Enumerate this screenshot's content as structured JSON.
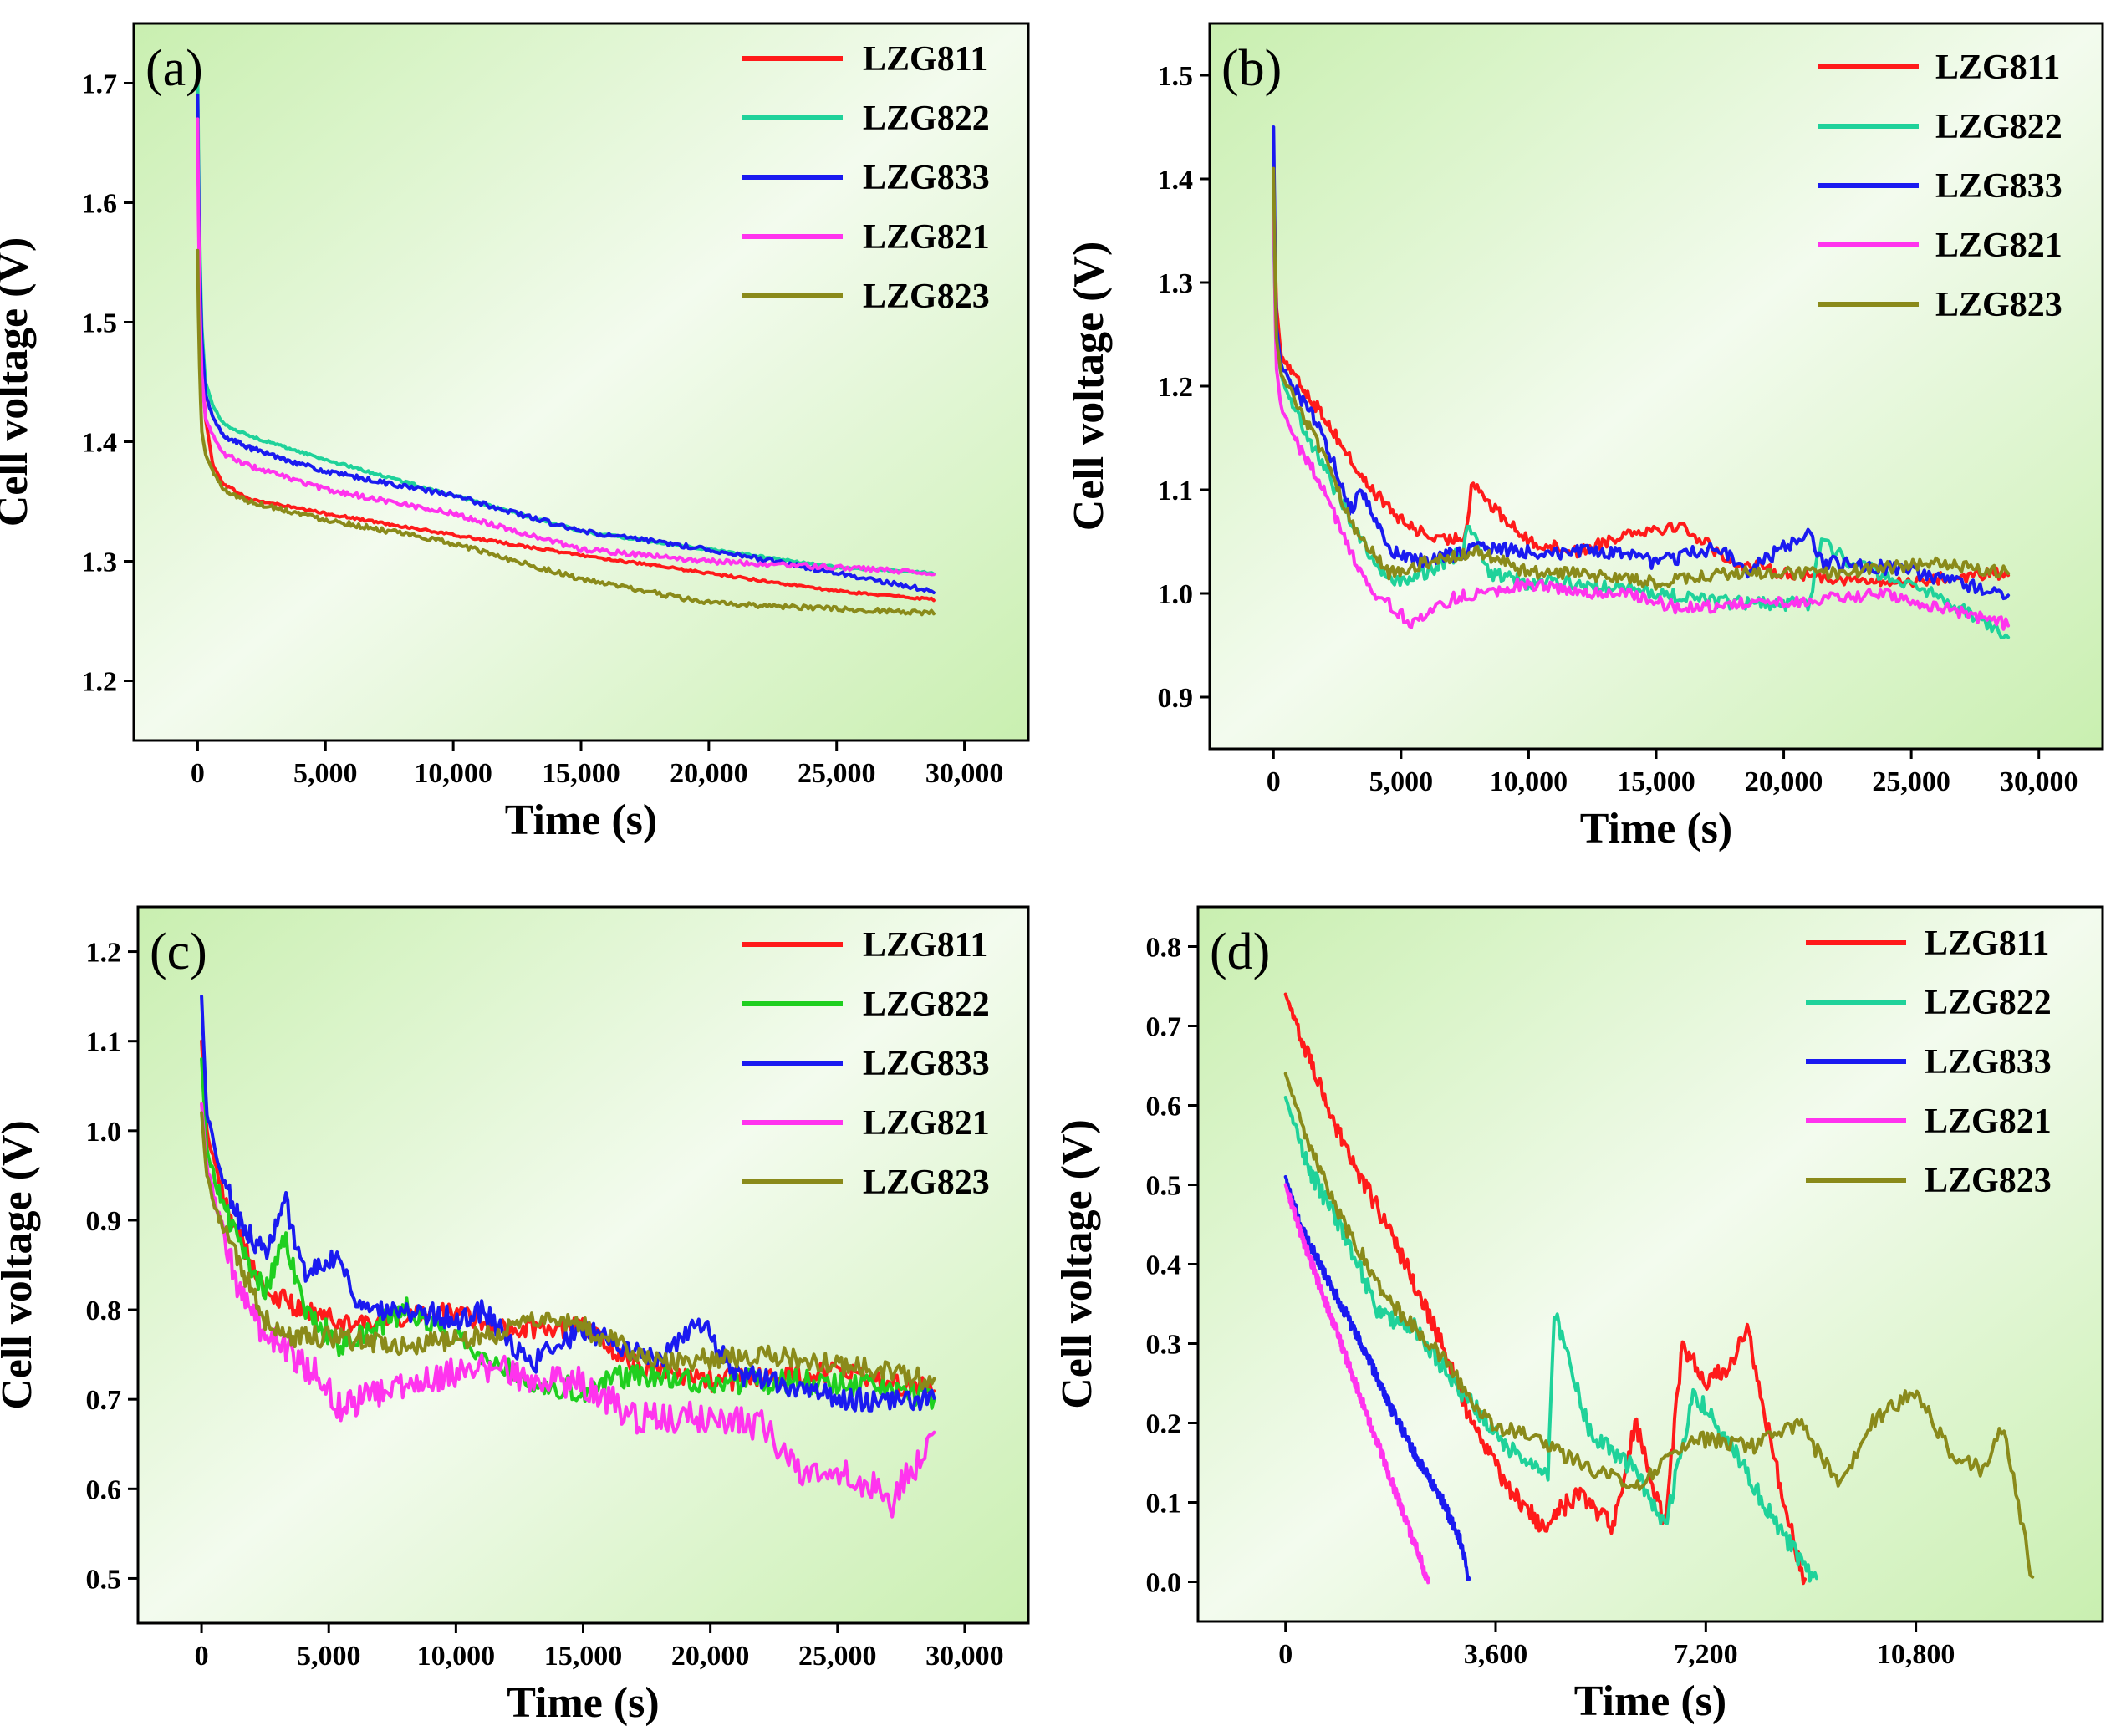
{
  "chart_data": [
    {
      "panel": "(a)",
      "type": "line",
      "xlabel": "Time (s)",
      "ylabel": "Cell voltage (V)",
      "xlim": [
        -2500,
        32500
      ],
      "ylim": [
        1.15,
        1.75
      ],
      "xticks": [
        0,
        5000,
        10000,
        15000,
        20000,
        25000,
        30000
      ],
      "xtick_labels": [
        "0",
        "5,000",
        "10,000",
        "15,000",
        "20,000",
        "25,000",
        "30,000"
      ],
      "yticks": [
        1.2,
        1.3,
        1.4,
        1.5,
        1.6,
        1.7
      ],
      "ytick_labels": [
        "1.2",
        "1.3",
        "1.4",
        "1.5",
        "1.6",
        "1.7"
      ],
      "legend_position": "top-right",
      "series": [
        {
          "name": "LZG811",
          "color": "#ff1a1a",
          "noise": 0.001,
          "x": [
            0,
            50,
            150,
            300,
            600,
            1000,
            2000,
            5000,
            10000,
            15000,
            20000,
            25000,
            28800
          ],
          "y": [
            1.69,
            1.58,
            1.47,
            1.42,
            1.38,
            1.365,
            1.352,
            1.34,
            1.322,
            1.305,
            1.29,
            1.275,
            1.268
          ]
        },
        {
          "name": "LZG822",
          "color": "#1fd29a",
          "noise": 0.001,
          "x": [
            0,
            50,
            150,
            300,
            600,
            1000,
            2000,
            5000,
            10000,
            15000,
            20000,
            25000,
            28800
          ],
          "y": [
            1.71,
            1.6,
            1.5,
            1.45,
            1.43,
            1.415,
            1.405,
            1.385,
            1.355,
            1.325,
            1.31,
            1.295,
            1.29
          ]
        },
        {
          "name": "LZG833",
          "color": "#1a1af0",
          "noise": 0.002,
          "x": [
            0,
            50,
            150,
            300,
            600,
            1000,
            2000,
            5000,
            10000,
            15000,
            20000,
            25000,
            28800
          ],
          "y": [
            1.69,
            1.58,
            1.49,
            1.44,
            1.42,
            1.405,
            1.395,
            1.375,
            1.355,
            1.325,
            1.31,
            1.29,
            1.275
          ]
        },
        {
          "name": "LZG821",
          "color": "#ff33ee",
          "noise": 0.002,
          "x": [
            0,
            50,
            150,
            300,
            600,
            1000,
            2000,
            5000,
            10000,
            15000,
            20000,
            25000,
            28800
          ],
          "y": [
            1.67,
            1.55,
            1.46,
            1.42,
            1.405,
            1.39,
            1.38,
            1.36,
            1.34,
            1.31,
            1.3,
            1.295,
            1.29
          ]
        },
        {
          "name": "LZG823",
          "color": "#8a8a1a",
          "noise": 0.002,
          "x": [
            0,
            50,
            150,
            300,
            600,
            1000,
            2000,
            5000,
            10000,
            15000,
            20000,
            25000,
            28800
          ],
          "y": [
            1.56,
            1.48,
            1.41,
            1.39,
            1.375,
            1.36,
            1.35,
            1.335,
            1.315,
            1.285,
            1.265,
            1.26,
            1.257
          ]
        }
      ]
    },
    {
      "panel": "(b)",
      "type": "line",
      "xlabel": "Time (s)",
      "ylabel": "Cell voltage (V)",
      "xlim": [
        -2500,
        32500
      ],
      "ylim": [
        0.85,
        1.55
      ],
      "xticks": [
        0,
        5000,
        10000,
        15000,
        20000,
        25000,
        30000
      ],
      "xtick_labels": [
        "0",
        "5,000",
        "10,000",
        "15,000",
        "20,000",
        "25,000",
        "30,000"
      ],
      "yticks": [
        0.9,
        1.0,
        1.1,
        1.2,
        1.3,
        1.4,
        1.5
      ],
      "ytick_labels": [
        "0.9",
        "1.0",
        "1.1",
        "1.2",
        "1.3",
        "1.4",
        "1.5"
      ],
      "legend_position": "top-right",
      "series": [
        {
          "name": "LZG811",
          "color": "#ff1a1a",
          "noise": 0.006,
          "x": [
            0,
            100,
            300,
            800,
            2000,
            3500,
            5000,
            6500,
            7500,
            7800,
            8500,
            10000,
            12000,
            14000,
            16000,
            18000,
            20000,
            24000,
            28800
          ],
          "y": [
            1.42,
            1.28,
            1.23,
            1.21,
            1.17,
            1.11,
            1.07,
            1.05,
            1.055,
            1.11,
            1.085,
            1.05,
            1.04,
            1.06,
            1.065,
            1.03,
            1.02,
            1.01,
            1.02
          ]
        },
        {
          "name": "LZG822",
          "color": "#1fd29a",
          "noise": 0.007,
          "x": [
            0,
            100,
            300,
            800,
            2000,
            3500,
            4500,
            6000,
            7400,
            7600,
            8500,
            10000,
            12000,
            15000,
            18000,
            21000,
            21500,
            22500,
            25000,
            28800
          ],
          "y": [
            1.35,
            1.25,
            1.21,
            1.18,
            1.12,
            1.05,
            1.01,
            1.02,
            1.04,
            1.07,
            1.02,
            1.01,
            1.01,
            1.0,
            0.99,
            0.99,
            1.055,
            1.03,
            1.01,
            0.96
          ]
        },
        {
          "name": "LZG833",
          "color": "#1a1af0",
          "noise": 0.007,
          "x": [
            0,
            100,
            300,
            800,
            2000,
            3000,
            3500,
            4500,
            6000,
            8000,
            10000,
            13000,
            15000,
            17500,
            18500,
            21000,
            21500,
            24000,
            28800
          ],
          "y": [
            1.45,
            1.26,
            1.22,
            1.2,
            1.15,
            1.08,
            1.1,
            1.04,
            1.03,
            1.045,
            1.04,
            1.04,
            1.03,
            1.045,
            1.02,
            1.06,
            1.03,
            1.025,
            1.0
          ]
        },
        {
          "name": "LZG821",
          "color": "#ff33ee",
          "noise": 0.006,
          "x": [
            0,
            100,
            300,
            800,
            2000,
            3000,
            4000,
            5500,
            7000,
            8000,
            10000,
            12000,
            14000,
            16000,
            18000,
            20000,
            24000,
            28800
          ],
          "y": [
            1.38,
            1.22,
            1.18,
            1.15,
            1.1,
            1.04,
            1.0,
            0.97,
            0.995,
            1.0,
            1.01,
            1.0,
            1.0,
            0.985,
            0.99,
            0.99,
            1.0,
            0.97
          ]
        },
        {
          "name": "LZG823",
          "color": "#8a8a1a",
          "noise": 0.006,
          "x": [
            0,
            100,
            300,
            800,
            2000,
            3000,
            4500,
            6000,
            8000,
            10000,
            12000,
            15000,
            18000,
            22000,
            26000,
            28800
          ],
          "y": [
            1.41,
            1.25,
            1.21,
            1.19,
            1.13,
            1.07,
            1.02,
            1.03,
            1.04,
            1.02,
            1.02,
            1.01,
            1.02,
            1.02,
            1.03,
            1.02
          ]
        }
      ]
    },
    {
      "panel": "(c)",
      "type": "line",
      "xlabel": "Time (s)",
      "ylabel": "Cell voltage (V)",
      "xlim": [
        -2500,
        32500
      ],
      "ylim": [
        0.45,
        1.25
      ],
      "xticks": [
        0,
        5000,
        10000,
        15000,
        20000,
        25000,
        30000
      ],
      "xtick_labels": [
        "0",
        "5,000",
        "10,000",
        "15,000",
        "20,000",
        "25,000",
        "30,000"
      ],
      "yticks": [
        0.5,
        0.6,
        0.7,
        0.8,
        0.9,
        1.0,
        1.1,
        1.2
      ],
      "ytick_labels": [
        "0.5",
        "0.6",
        "0.7",
        "0.8",
        "0.9",
        "1.0",
        "1.1",
        "1.2"
      ],
      "legend_position": "top-right",
      "series": [
        {
          "name": "LZG811",
          "color": "#ff1a1a",
          "noise": 0.012,
          "x": [
            0,
            200,
            700,
            1500,
            2500,
            4000,
            6000,
            9000,
            12000,
            15000,
            17000,
            20000,
            25000,
            28800
          ],
          "y": [
            1.1,
            1.0,
            0.94,
            0.88,
            0.82,
            0.8,
            0.78,
            0.8,
            0.78,
            0.78,
            0.74,
            0.72,
            0.73,
            0.71
          ]
        },
        {
          "name": "LZG822",
          "color": "#1fcf1f",
          "noise": 0.014,
          "x": [
            0,
            200,
            700,
            1500,
            2500,
            3300,
            4000,
            5500,
            8000,
            10000,
            13000,
            15000,
            17000,
            20000,
            25000,
            28800
          ],
          "y": [
            1.08,
            0.98,
            0.93,
            0.87,
            0.82,
            0.88,
            0.8,
            0.76,
            0.8,
            0.77,
            0.72,
            0.71,
            0.73,
            0.72,
            0.72,
            0.7
          ]
        },
        {
          "name": "LZG833",
          "color": "#1a1af0",
          "noise": 0.013,
          "x": [
            0,
            200,
            700,
            1500,
            2500,
            3300,
            4000,
            5500,
            6000,
            8000,
            10000,
            11000,
            13000,
            15000,
            18000,
            19500,
            21000,
            25000,
            28800
          ],
          "y": [
            1.15,
            1.02,
            0.96,
            0.9,
            0.86,
            0.92,
            0.84,
            0.86,
            0.8,
            0.8,
            0.79,
            0.8,
            0.74,
            0.78,
            0.74,
            0.79,
            0.73,
            0.7,
            0.7
          ]
        },
        {
          "name": "LZG821",
          "color": "#ff33ee",
          "noise": 0.018,
          "x": [
            0,
            200,
            700,
            1500,
            2500,
            3500,
            4500,
            5500,
            7000,
            9000,
            11000,
            13000,
            15000,
            17000,
            20000,
            22000,
            23500,
            25000,
            26500,
            27000,
            28800
          ],
          "y": [
            1.03,
            0.96,
            0.9,
            0.82,
            0.77,
            0.75,
            0.73,
            0.69,
            0.71,
            0.72,
            0.74,
            0.72,
            0.72,
            0.68,
            0.68,
            0.67,
            0.62,
            0.62,
            0.6,
            0.58,
            0.66
          ]
        },
        {
          "name": "LZG823",
          "color": "#8a8a1a",
          "noise": 0.012,
          "x": [
            0,
            200,
            700,
            1500,
            2500,
            3500,
            5000,
            8000,
            11000,
            13500,
            15000,
            18000,
            22000,
            25000,
            28800
          ],
          "y": [
            1.02,
            0.95,
            0.9,
            0.85,
            0.79,
            0.77,
            0.77,
            0.76,
            0.77,
            0.79,
            0.78,
            0.74,
            0.75,
            0.74,
            0.72
          ]
        }
      ]
    },
    {
      "panel": "(d)",
      "type": "line",
      "xlabel": "Time (s)",
      "ylabel": "Cell voltage (V)",
      "xlim": [
        -1500,
        14000
      ],
      "ylim": [
        -0.05,
        0.85
      ],
      "xticks": [
        0,
        3600,
        7200,
        10800
      ],
      "xtick_labels": [
        "0",
        "3,600",
        "7,200",
        "10,800"
      ],
      "yticks": [
        0.0,
        0.1,
        0.2,
        0.3,
        0.4,
        0.5,
        0.6,
        0.7,
        0.8
      ],
      "ytick_labels": [
        "0.0",
        "0.1",
        "0.2",
        "0.3",
        "0.4",
        "0.5",
        "0.6",
        "0.7",
        "0.8"
      ],
      "legend_position": "top-right",
      "series": [
        {
          "name": "LZG811",
          "color": "#ff1a1a",
          "noise": 0.012,
          "x": [
            0,
            400,
            1000,
            1800,
            2500,
            3200,
            3800,
            4400,
            5000,
            5600,
            6000,
            6500,
            6800,
            7200,
            7600,
            7900,
            8300,
            8600,
            8900
          ],
          "y": [
            0.74,
            0.66,
            0.55,
            0.44,
            0.33,
            0.2,
            0.12,
            0.07,
            0.11,
            0.07,
            0.2,
            0.07,
            0.3,
            0.25,
            0.27,
            0.32,
            0.18,
            0.08,
            0.0
          ]
        },
        {
          "name": "LZG822",
          "color": "#1fd29a",
          "noise": 0.012,
          "x": [
            0,
            400,
            1000,
            1600,
            2200,
            3000,
            3800,
            4500,
            4600,
            5200,
            6000,
            6500,
            7000,
            7800,
            8500,
            9100
          ],
          "y": [
            0.61,
            0.52,
            0.44,
            0.34,
            0.32,
            0.24,
            0.17,
            0.14,
            0.34,
            0.19,
            0.14,
            0.07,
            0.24,
            0.15,
            0.06,
            0.0
          ]
        },
        {
          "name": "LZG833",
          "color": "#1a1af0",
          "noise": 0.008,
          "x": [
            0,
            300,
            800,
            1300,
            1800,
            2300,
            2700,
            3000,
            3150
          ],
          "y": [
            0.51,
            0.44,
            0.37,
            0.3,
            0.22,
            0.15,
            0.1,
            0.05,
            0.0
          ]
        },
        {
          "name": "LZG821",
          "color": "#ff33ee",
          "noise": 0.008,
          "x": [
            0,
            300,
            700,
            1100,
            1500,
            1900,
            2200,
            2450
          ],
          "y": [
            0.5,
            0.43,
            0.35,
            0.27,
            0.19,
            0.11,
            0.05,
            0.0
          ]
        },
        {
          "name": "LZG823",
          "color": "#8a8a1a",
          "noise": 0.01,
          "x": [
            0,
            400,
            1000,
            1800,
            2500,
            3500,
            4300,
            5000,
            6000,
            7000,
            8000,
            8800,
            9500,
            10000,
            10800,
            11400,
            12000,
            12300,
            12600,
            12800
          ],
          "y": [
            0.64,
            0.55,
            0.45,
            0.35,
            0.3,
            0.2,
            0.18,
            0.15,
            0.12,
            0.18,
            0.17,
            0.2,
            0.12,
            0.2,
            0.24,
            0.16,
            0.14,
            0.2,
            0.08,
            0.0
          ]
        }
      ]
    }
  ]
}
